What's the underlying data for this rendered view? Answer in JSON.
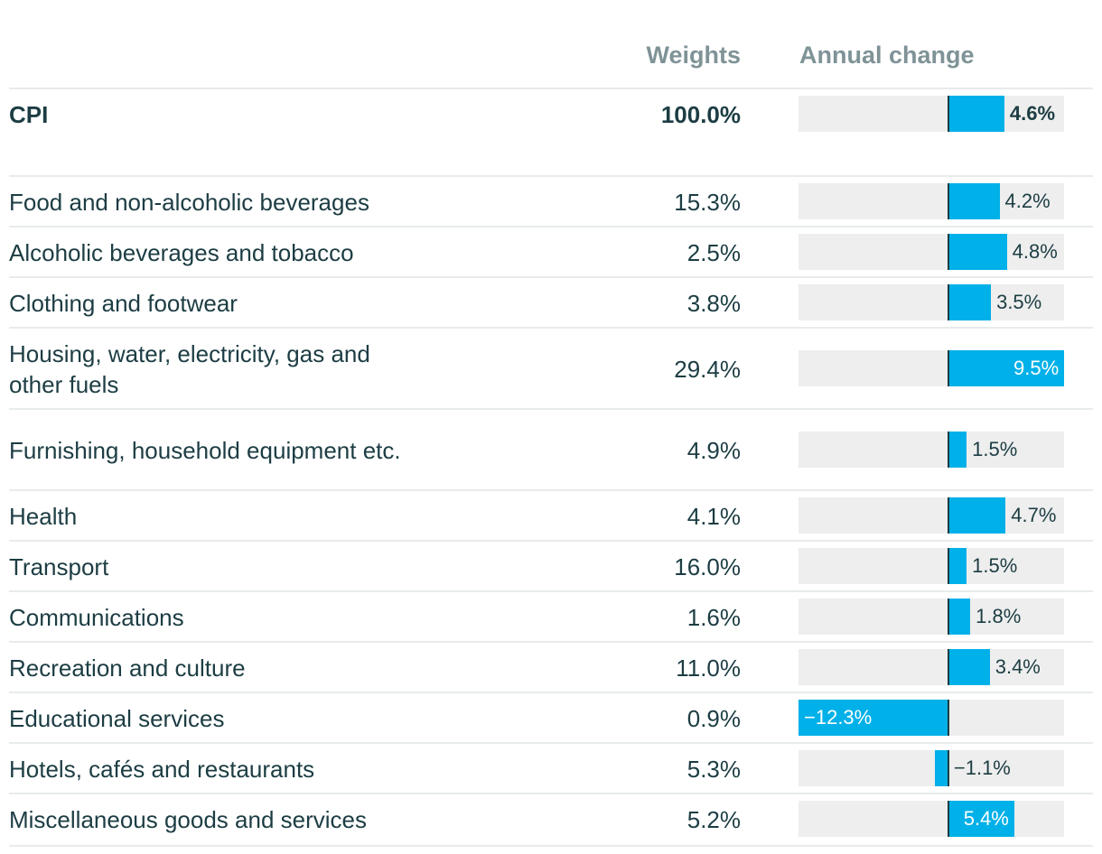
{
  "chart_data": {
    "type": "bar",
    "orientation": "horizontal",
    "title": "",
    "columns": {
      "weights": "Weights",
      "annual_change": "Annual change"
    },
    "xlim": [
      -12.3,
      9.5
    ],
    "rows": [
      {
        "category": "CPI",
        "weight": "100.0%",
        "value": 4.6,
        "label": "4.6%",
        "bold": true
      },
      {
        "category": "Food and non-alcoholic beverages",
        "weight": "15.3%",
        "value": 4.2,
        "label": "4.2%"
      },
      {
        "category": "Alcoholic beverages and tobacco",
        "weight": "2.5%",
        "value": 4.8,
        "label": "4.8%"
      },
      {
        "category": "Clothing and footwear",
        "weight": "3.8%",
        "value": 3.5,
        "label": "3.5%"
      },
      {
        "category": "Housing, water, electricity, gas and other fuels",
        "weight": "29.4%",
        "value": 9.5,
        "label": "9.5%"
      },
      {
        "category": "Furnishing, household equipment etc.",
        "weight": "4.9%",
        "value": 1.5,
        "label": "1.5%"
      },
      {
        "category": "Health",
        "weight": "4.1%",
        "value": 4.7,
        "label": "4.7%"
      },
      {
        "category": "Transport",
        "weight": "16.0%",
        "value": 1.5,
        "label": "1.5%"
      },
      {
        "category": "Communications",
        "weight": "1.6%",
        "value": 1.8,
        "label": "1.8%"
      },
      {
        "category": "Recreation and culture",
        "weight": "11.0%",
        "value": 3.4,
        "label": "3.4%"
      },
      {
        "category": "Educational services",
        "weight": "0.9%",
        "value": -12.3,
        "label": "−12.3%"
      },
      {
        "category": "Hotels, cafés and restaurants",
        "weight": "5.3%",
        "value": -1.1,
        "label": "−1.1%"
      },
      {
        "category": "Miscellaneous goods and services",
        "weight": "5.2%",
        "value": 5.4,
        "label": "5.4%"
      }
    ]
  },
  "colors": {
    "bar": "#00b0e8",
    "track": "#eeeeee",
    "text": "#1c3d43",
    "header": "#7f9397",
    "rule": "#e7eceb"
  }
}
